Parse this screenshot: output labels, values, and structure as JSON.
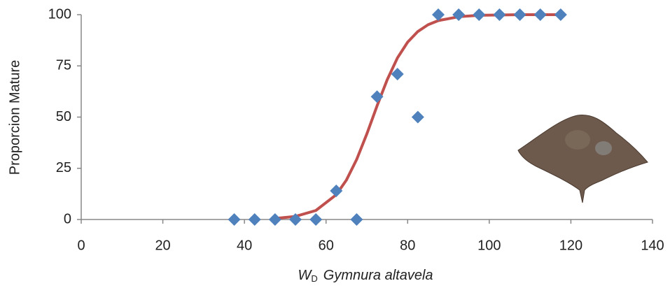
{
  "chart_data": {
    "type": "scatter",
    "y_label": "Proporcion Mature",
    "x_label": {
      "symbol": "W",
      "subscript": "D",
      "species": "Gymnura altavela"
    },
    "xlim": [
      0,
      140
    ],
    "xticks": [
      0,
      20,
      40,
      60,
      80,
      100,
      120,
      140
    ],
    "ylim": [
      0,
      100
    ],
    "yticks": [
      0,
      25,
      50,
      75,
      100
    ],
    "series": [
      {
        "type": "scatter",
        "color": "#4f81bd",
        "x": [
          37.5,
          42.5,
          47.5,
          52.5,
          57.5,
          62.5,
          67.5,
          72.5,
          77.5,
          82.5,
          87.5,
          92.5,
          97.5,
          102.5,
          107.5,
          112.5,
          117.5
        ],
        "values": [
          0,
          0,
          0,
          0,
          0,
          14,
          0,
          60,
          71,
          50,
          100,
          100,
          100,
          100,
          100,
          100,
          100
        ]
      },
      {
        "type": "line",
        "color": "#c0504d",
        "x": [
          47.5,
          52.5,
          57.5,
          62.5,
          65,
          67.5,
          70,
          72.5,
          75,
          77.5,
          80,
          82.5,
          85,
          87.5,
          92.5,
          97.5,
          107.5,
          117.5
        ],
        "values": [
          0.5,
          1.5,
          4.4,
          12.1,
          19.3,
          29.3,
          41.8,
          55.5,
          68.3,
          78.9,
          86.6,
          91.8,
          95.1,
          97.1,
          99.0,
          99.7,
          100,
          100
        ]
      }
    ]
  }
}
